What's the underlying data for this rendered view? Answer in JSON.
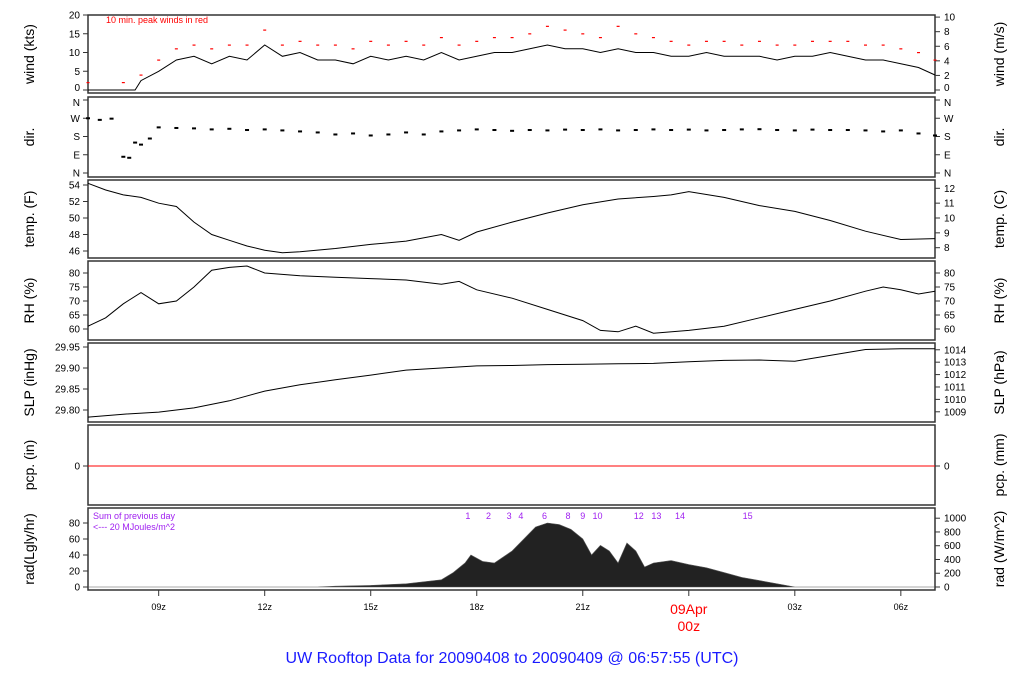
{
  "footer_title": "UW Rooftop Data for 20090408  to  20090409 @ 06:57:55  (UTC)",
  "colors": {
    "line": "#000000",
    "peak": "#ff0000",
    "pcp": "#ff0000",
    "annotation": "#a020f0",
    "footer": "#1a1aff",
    "date_label": "#ff0000"
  },
  "chart_data": [
    {
      "type": "line",
      "id": "wind",
      "ylabel_left": "wind (kts)",
      "ylabel_right": "wind (m/s)",
      "ylim": [
        0,
        20
      ],
      "yticks_left": [
        "0",
        "5",
        "10",
        "15",
        "20"
      ],
      "yticks_left_values": [
        0,
        5,
        10,
        15,
        20
      ],
      "yticks_right": [
        "0",
        "2",
        "4",
        "6",
        "8",
        "10"
      ],
      "yticks_right_values_ms": [
        0,
        2,
        4,
        6,
        8,
        10
      ],
      "annotation": "10 min. peak winds in red",
      "x": [
        "07:00",
        "07:30",
        "08:00",
        "08:20",
        "08:30",
        "09:00",
        "09:30",
        "10:00",
        "10:30",
        "11:00",
        "11:30",
        "12:00",
        "12:30",
        "13:00",
        "13:30",
        "14:00",
        "14:30",
        "15:00",
        "15:30",
        "16:00",
        "16:30",
        "17:00",
        "17:30",
        "18:00",
        "18:30",
        "19:00",
        "19:30",
        "20:00",
        "20:30",
        "21:00",
        "21:30",
        "22:00",
        "22:30",
        "23:00",
        "23:30",
        "00:00",
        "00:30",
        "01:00",
        "01:30",
        "02:00",
        "02:30",
        "03:00",
        "03:30",
        "04:00",
        "04:30",
        "05:00",
        "05:30",
        "06:00",
        "06:30",
        "06:58"
      ],
      "series": [
        {
          "values": [
            0,
            0,
            0,
            0,
            2.5,
            5,
            8,
            9,
            7,
            9,
            8,
            12,
            9,
            10,
            8,
            8,
            7,
            9,
            8,
            9,
            8,
            10,
            8,
            9,
            10,
            10,
            11,
            12,
            11,
            11,
            10,
            11,
            10,
            10,
            9,
            9,
            10,
            9,
            9,
            9,
            8,
            9,
            9,
            10,
            9,
            8,
            8,
            7,
            6,
            4
          ]
        },
        {
          "kind": "peak",
          "values": [
            2,
            0,
            2,
            0,
            4,
            8,
            11,
            12,
            11,
            12,
            12,
            16,
            12,
            13,
            12,
            12,
            11,
            13,
            12,
            13,
            12,
            14,
            12,
            13,
            14,
            14,
            15,
            17,
            16,
            15,
            14,
            17,
            15,
            14,
            13,
            12,
            13,
            13,
            12,
            13,
            12,
            12,
            13,
            13,
            13,
            12,
            12,
            11,
            10,
            8
          ]
        }
      ]
    },
    {
      "type": "scatter",
      "id": "dir",
      "ylabel_left": "dir.",
      "ylabel_right": "dir.",
      "ylim": [
        0,
        360
      ],
      "yticks": [
        "N",
        "E",
        "S",
        "W",
        "N"
      ],
      "yticks_values_deg": [
        0,
        90,
        180,
        270,
        360
      ],
      "x": [
        "07:00",
        "07:20",
        "07:40",
        "08:00",
        "08:10",
        "08:20",
        "08:30",
        "08:45",
        "09:00",
        "09:30",
        "10:00",
        "10:30",
        "11:00",
        "11:30",
        "12:00",
        "12:30",
        "13:00",
        "13:30",
        "14:00",
        "14:30",
        "15:00",
        "15:30",
        "16:00",
        "16:30",
        "17:00",
        "17:30",
        "18:00",
        "18:30",
        "19:00",
        "19:30",
        "20:00",
        "20:30",
        "21:00",
        "21:30",
        "22:00",
        "22:30",
        "23:00",
        "23:30",
        "00:00",
        "00:30",
        "01:00",
        "01:30",
        "02:00",
        "02:30",
        "03:00",
        "03:30",
        "04:00",
        "04:30",
        "05:00",
        "05:30",
        "06:00",
        "06:30",
        "06:58"
      ],
      "values": [
        270,
        262,
        268,
        80,
        75,
        150,
        140,
        170,
        225,
        222,
        220,
        215,
        218,
        212,
        215,
        210,
        205,
        200,
        190,
        195,
        185,
        190,
        200,
        190,
        205,
        210,
        215,
        212,
        208,
        212,
        210,
        214,
        212,
        215,
        210,
        212,
        215,
        212,
        214,
        210,
        212,
        215,
        216,
        212,
        210,
        214,
        212,
        212,
        210,
        205,
        210,
        195,
        185
      ]
    },
    {
      "type": "line",
      "id": "temp",
      "ylabel_left": "temp. (F)",
      "ylabel_right": "temp. (C)",
      "ylim": [
        46,
        54
      ],
      "yticks_left": [
        "46",
        "48",
        "50",
        "52",
        "54"
      ],
      "yticks_left_values": [
        46,
        48,
        50,
        52,
        54
      ],
      "yticks_right": [
        "8",
        "9",
        "10",
        "11",
        "12"
      ],
      "yticks_right_values_c": [
        8,
        9,
        10,
        11,
        12
      ],
      "x": [
        "07:00",
        "07:30",
        "08:00",
        "08:30",
        "09:00",
        "09:30",
        "10:00",
        "10:30",
        "11:00",
        "11:30",
        "12:00",
        "12:30",
        "13:00",
        "14:00",
        "15:00",
        "16:00",
        "17:00",
        "17:30",
        "18:00",
        "19:00",
        "20:00",
        "21:00",
        "22:00",
        "23:00",
        "23:30",
        "00:00",
        "01:00",
        "02:00",
        "03:00",
        "04:00",
        "05:00",
        "06:00",
        "06:58"
      ],
      "values": [
        54.2,
        53.4,
        52.8,
        52.5,
        51.8,
        51.4,
        49.5,
        48,
        47.3,
        46.6,
        46.1,
        45.8,
        45.9,
        46.3,
        46.8,
        47.2,
        48,
        47.3,
        48.3,
        49.5,
        50.6,
        51.6,
        52.3,
        52.6,
        52.8,
        53.2,
        52.5,
        51.5,
        50.8,
        49.7,
        48.4,
        47.4,
        47.5
      ]
    },
    {
      "type": "line",
      "id": "rh",
      "ylabel_left": "RH (%)",
      "ylabel_right": "RH (%)",
      "ylim": [
        58,
        82
      ],
      "yticks_left": [
        "60",
        "65",
        "70",
        "75",
        "80"
      ],
      "yticks_left_values": [
        60,
        65,
        70,
        75,
        80
      ],
      "yticks_right": [
        "60",
        "65",
        "70",
        "75",
        "80"
      ],
      "x": [
        "07:00",
        "07:30",
        "08:00",
        "08:30",
        "09:00",
        "09:30",
        "10:00",
        "10:30",
        "11:00",
        "11:30",
        "12:00",
        "13:00",
        "14:00",
        "15:00",
        "16:00",
        "17:00",
        "17:30",
        "18:00",
        "19:00",
        "20:00",
        "21:00",
        "21:30",
        "22:00",
        "22:30",
        "23:00",
        "00:00",
        "01:00",
        "02:00",
        "03:00",
        "04:00",
        "05:00",
        "05:30",
        "06:00",
        "06:30",
        "06:58"
      ],
      "values": [
        61,
        64,
        69,
        73,
        69,
        70,
        75,
        81,
        82,
        82.5,
        80,
        79,
        78.5,
        78,
        77.5,
        76,
        77,
        74,
        71,
        67,
        63,
        59.5,
        59,
        61,
        58.5,
        59.5,
        61,
        64,
        67,
        70,
        73.5,
        75,
        74,
        72.5,
        73.5
      ]
    },
    {
      "type": "line",
      "id": "slp",
      "ylabel_left": "SLP (inHg)",
      "ylabel_right": "SLP (hPa)",
      "ylim": [
        29.78,
        29.95
      ],
      "yticks_left": [
        "29.80",
        "29.85",
        "29.90",
        "29.95"
      ],
      "yticks_left_values": [
        29.8,
        29.85,
        29.9,
        29.95
      ],
      "yticks_right": [
        "1009",
        "1010",
        "1011",
        "1012",
        "1013",
        "1014"
      ],
      "yticks_right_values_hpa": [
        1009,
        1010,
        1011,
        1012,
        1013,
        1014
      ],
      "x": [
        "07:00",
        "08:00",
        "09:00",
        "10:00",
        "11:00",
        "12:00",
        "13:00",
        "14:00",
        "15:00",
        "16:00",
        "17:00",
        "18:00",
        "19:00",
        "20:00",
        "21:00",
        "22:00",
        "23:00",
        "00:00",
        "01:00",
        "02:00",
        "03:00",
        "04:00",
        "05:00",
        "06:00",
        "06:58"
      ],
      "values": [
        29.783,
        29.79,
        29.795,
        29.805,
        29.822,
        29.845,
        29.86,
        29.872,
        29.883,
        29.895,
        29.9,
        29.905,
        29.906,
        29.908,
        29.909,
        29.91,
        29.911,
        29.915,
        29.918,
        29.919,
        29.916,
        29.93,
        29.944,
        29.946,
        29.946
      ]
    },
    {
      "type": "line",
      "id": "pcp",
      "ylabel_left": "pcp. (in)",
      "ylabel_right": "pcp. (mm)",
      "yticks_left": [
        "0"
      ],
      "yticks_right": [
        "0"
      ],
      "x": [
        "07:00",
        "06:58"
      ],
      "values": [
        0,
        0
      ]
    },
    {
      "type": "area",
      "id": "rad",
      "ylabel_left": "rad(Lgly/hr)",
      "ylabel_right": "rad (W/m^2)",
      "ylim": [
        0,
        90
      ],
      "yticks_left": [
        "0",
        "20",
        "40",
        "60",
        "80"
      ],
      "yticks_left_values": [
        0,
        20,
        40,
        60,
        80
      ],
      "yticks_right": [
        "0",
        "200",
        "400",
        "600",
        "800",
        "1000"
      ],
      "yticks_right_values_wm2": [
        0,
        200,
        400,
        600,
        800,
        1000
      ],
      "annotation_line1": "Sum of previous day",
      "annotation_line2": "<--- 20 MJoules/m^2",
      "hour_markers": [
        "1",
        "2",
        "3",
        "4",
        "6",
        "8",
        "9",
        "10",
        "12",
        "13",
        "14",
        "15"
      ],
      "hour_marker_times": [
        "17:45",
        "18:20",
        "18:55",
        "19:15",
        "19:55",
        "20:35",
        "21:00",
        "21:25",
        "22:35",
        "23:05",
        "23:45",
        "01:40"
      ],
      "x": [
        "07:00",
        "13:30",
        "14:00",
        "15:00",
        "16:00",
        "17:00",
        "17:20",
        "17:40",
        "17:50",
        "18:10",
        "18:30",
        "19:00",
        "19:20",
        "19:40",
        "20:00",
        "20:20",
        "20:40",
        "21:00",
        "21:15",
        "21:30",
        "21:45",
        "22:00",
        "22:15",
        "22:30",
        "22:45",
        "23:00",
        "23:30",
        "00:00",
        "00:30",
        "01:00",
        "01:30",
        "02:00",
        "02:30",
        "03:00",
        "06:58"
      ],
      "values": [
        0,
        0,
        1,
        2,
        4,
        9,
        18,
        30,
        40,
        32,
        30,
        45,
        60,
        75,
        80,
        78,
        72,
        60,
        40,
        52,
        45,
        30,
        55,
        45,
        25,
        30,
        33,
        28,
        24,
        18,
        12,
        8,
        4,
        0,
        0
      ]
    }
  ],
  "time_axis": {
    "ticks": [
      "09z",
      "12z",
      "15z",
      "18z",
      "21z",
      "00z",
      "03z",
      "06z"
    ],
    "tick_times": [
      "09:00",
      "12:00",
      "15:00",
      "18:00",
      "21:00",
      "00:00",
      "03:00",
      "06:00"
    ],
    "date_label": "09Apr",
    "date_label_time": "00:00",
    "range": [
      "07:00",
      "06:58"
    ]
  }
}
